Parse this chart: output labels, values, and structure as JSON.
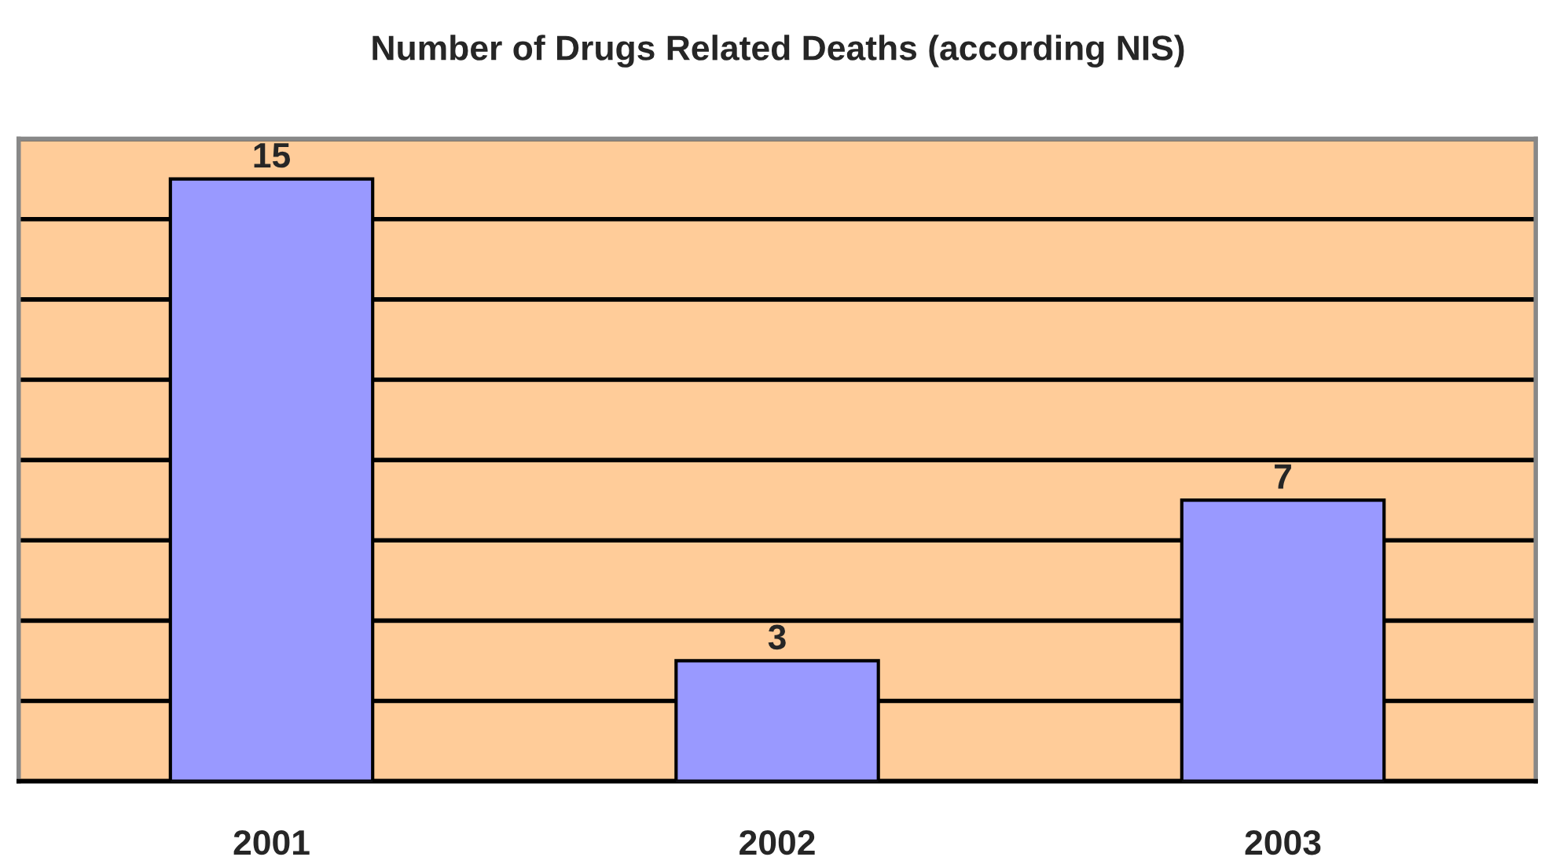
{
  "chart_data": {
    "type": "bar",
    "title": "Number of Drugs Related Deaths (according NIS)",
    "categories": [
      "2001",
      "2002",
      "2003"
    ],
    "values": [
      15,
      3,
      7
    ],
    "color": "#9999ff",
    "data_labels": true,
    "ylim": [
      0,
      16
    ],
    "yticks": [
      {
        "value": 0,
        "label": null
      },
      {
        "value": 2,
        "label": null
      },
      {
        "value": 4,
        "label": null
      },
      {
        "value": 6,
        "label": null
      },
      {
        "value": 8,
        "label": null
      },
      {
        "value": 10,
        "label": null
      },
      {
        "value": 12,
        "label": null
      },
      {
        "value": 14,
        "label": null
      },
      {
        "value": 16,
        "label": null
      }
    ],
    "grid": "y",
    "tick_labels": "x"
  }
}
